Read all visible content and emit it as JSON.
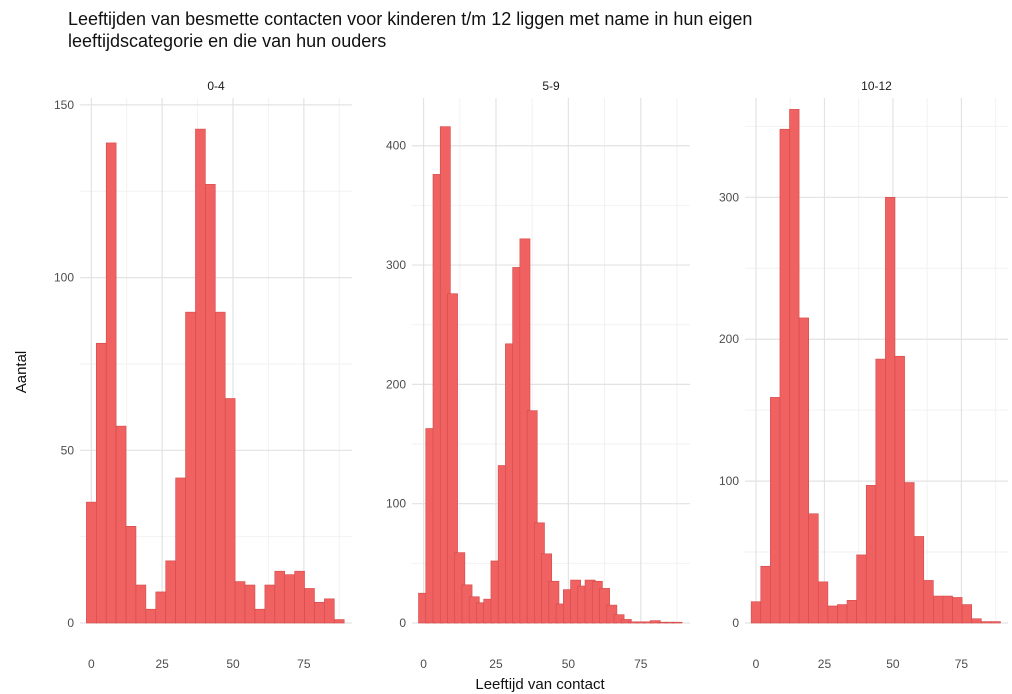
{
  "title_lines": [
    "Leeftijden van besmette contacten voor kinderen t/m 12 liggen met name in hun eigen",
    "leeftijdscategorie en die van hun ouders"
  ],
  "chart_data": {
    "type": "bar",
    "subtype": "faceted-histogram",
    "title": "Leeftijden van besmette contacten voor kinderen t/m 12 liggen met name in hun eigen leeftijdscategorie en die van hun ouders",
    "xlabel": "Leeftijd van contact",
    "ylabel": "Aantal",
    "bin_width": 3.5,
    "fill_color": "#f06161",
    "stroke_color": "#d44a4a",
    "grid": true,
    "panels": [
      {
        "label": "0-4",
        "xlim": [
          -4,
          92
        ],
        "ylim": [
          0,
          152
        ],
        "xticks": [
          0,
          25,
          50,
          75
        ],
        "yticks": [
          0,
          50,
          100,
          150
        ],
        "x": [
          0,
          3.5,
          7,
          10.5,
          14,
          17.5,
          21,
          24.5,
          28,
          31.5,
          35,
          38.5,
          42,
          45.5,
          49,
          52.5,
          56,
          59.5,
          63,
          66.5,
          70,
          73.5,
          77,
          80.5,
          84,
          87.5
        ],
        "values": [
          35,
          81,
          139,
          57,
          28,
          11,
          4,
          9,
          18,
          42,
          90,
          143,
          127,
          90,
          65,
          12,
          11,
          4,
          11,
          15,
          14,
          15,
          10,
          6,
          7,
          1
        ]
      },
      {
        "label": "5-9",
        "xlim": [
          -4,
          92
        ],
        "ylim": [
          0,
          440
        ],
        "xticks": [
          0,
          25,
          50,
          75
        ],
        "yticks": [
          0,
          100,
          200,
          300,
          400
        ],
        "x": [
          0,
          2.5,
          5,
          7.5,
          10,
          12.5,
          15,
          17.5,
          20,
          22.5,
          25,
          27.5,
          30,
          32.5,
          35,
          37.5,
          40,
          42.5,
          45,
          47.5,
          50,
          52.5,
          55,
          57.5,
          60,
          62.5,
          65,
          67.5,
          70,
          72.5,
          75,
          77.5,
          80,
          82.5,
          85,
          87.5
        ],
        "values": [
          25,
          163,
          376,
          416,
          276,
          59,
          32,
          22,
          17,
          20,
          52,
          132,
          234,
          298,
          322,
          178,
          84,
          58,
          35,
          16,
          28,
          36,
          31,
          36,
          35,
          29,
          15,
          7,
          3,
          1,
          1,
          1,
          2,
          0,
          0,
          0
        ]
      },
      {
        "label": "10-12",
        "xlim": [
          -4,
          92
        ],
        "ylim": [
          0,
          370
        ],
        "xticks": [
          0,
          25,
          50,
          75
        ],
        "yticks": [
          0,
          100,
          200,
          300
        ],
        "x": [
          0,
          3.5,
          7,
          10.5,
          14,
          17.5,
          21,
          24.5,
          28,
          31.5,
          35,
          38.5,
          42,
          45.5,
          49,
          52.5,
          56,
          59.5,
          63,
          66.5,
          70,
          73.5,
          77,
          80.5,
          84,
          87.5
        ],
        "values": [
          15,
          40,
          159,
          348,
          362,
          215,
          77,
          29,
          12,
          13,
          16,
          48,
          97,
          186,
          300,
          188,
          99,
          61,
          30,
          19,
          19,
          18,
          13,
          3,
          1,
          1
        ]
      }
    ]
  }
}
